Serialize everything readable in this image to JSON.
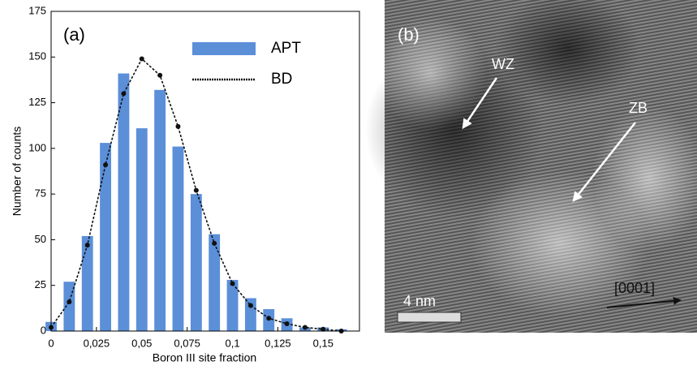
{
  "chart_data": {
    "type": "bar",
    "panel_label": "(a)",
    "y_label": "Number of counts",
    "x_label": "Boron III site fraction",
    "x": [
      0,
      0.01,
      0.02,
      0.03,
      0.04,
      0.05,
      0.06,
      0.07,
      0.08,
      0.09,
      0.1,
      0.11,
      0.12,
      0.13,
      0.14,
      0.15,
      0.16
    ],
    "series": [
      {
        "name": "APT",
        "type": "bar",
        "color": "#5b8fd8",
        "values": [
          5,
          27,
          52,
          103,
          141,
          111,
          132,
          101,
          75,
          53,
          28,
          18,
          12,
          7,
          2,
          2,
          1
        ]
      },
      {
        "name": "BD",
        "type": "line",
        "color": "#111111",
        "values": [
          2,
          16,
          47,
          91,
          130,
          149,
          140,
          112,
          77,
          48,
          26,
          14,
          7,
          4,
          2,
          1,
          0
        ]
      }
    ],
    "xlim": [
      0,
      0.17
    ],
    "ylim": [
      0,
      175
    ],
    "xticks": [
      0,
      {
        "value": 0.025,
        "label": "0,025"
      },
      {
        "value": 0.05,
        "label": "0,05"
      },
      {
        "value": 0.075,
        "label": "0,075"
      },
      {
        "value": 0.1,
        "label": "0,1"
      },
      {
        "value": 0.125,
        "label": "0,125"
      },
      {
        "value": 0.15,
        "label": "0,15"
      }
    ],
    "yticks": [
      0,
      25,
      50,
      75,
      100,
      125,
      150,
      175
    ]
  },
  "image": {
    "panel_label": "(b)",
    "labels": [
      "WZ",
      "ZB"
    ],
    "scale_bar": "4 nm",
    "direction": "[0001]"
  }
}
